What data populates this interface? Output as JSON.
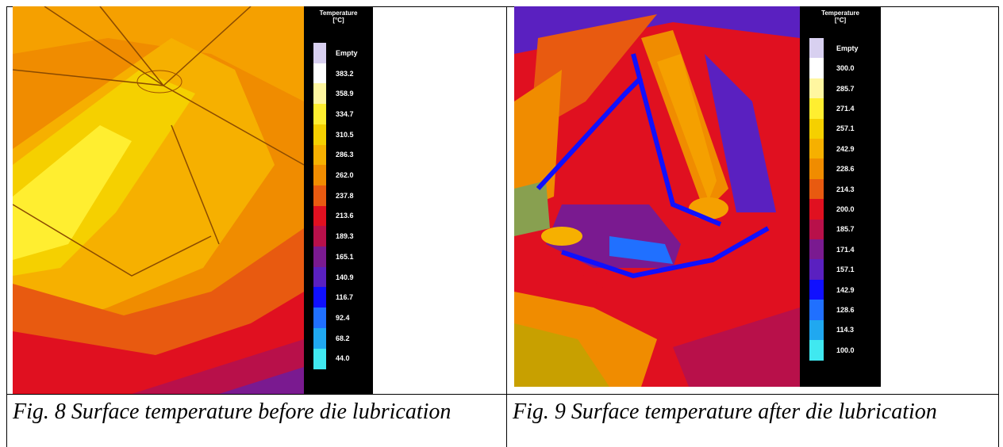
{
  "figures": [
    {
      "legend_title": "Temperature\n[°C]",
      "legend": [
        {
          "label": "Empty",
          "color": "#d8d0f0"
        },
        {
          "label": "383.2",
          "color": "#ffffff"
        },
        {
          "label": "358.9",
          "color": "#fff6a0"
        },
        {
          "label": "334.7",
          "color": "#ffee30"
        },
        {
          "label": "310.5",
          "color": "#f5d000"
        },
        {
          "label": "286.3",
          "color": "#f6b000"
        },
        {
          "label": "262.0",
          "color": "#f08c00"
        },
        {
          "label": "237.8",
          "color": "#e85a10"
        },
        {
          "label": "213.6",
          "color": "#e01020"
        },
        {
          "label": "189.3",
          "color": "#b8104a"
        },
        {
          "label": "165.1",
          "color": "#7a1a90"
        },
        {
          "label": "140.9",
          "color": "#5a20c0"
        },
        {
          "label": "116.7",
          "color": "#1010ff"
        },
        {
          "label": "92.4",
          "color": "#2070ff"
        },
        {
          "label": "68.2",
          "color": "#20a8f0"
        },
        {
          "label": "44.0",
          "color": "#40e8f0"
        }
      ],
      "caption": "Fig. 8 Surface temperature before die lubrication"
    },
    {
      "legend_title": "Temperature\n[°C]",
      "legend": [
        {
          "label": "Empty",
          "color": "#d8d0f0"
        },
        {
          "label": "300.0",
          "color": "#ffffff"
        },
        {
          "label": "285.7",
          "color": "#fff6a0"
        },
        {
          "label": "271.4",
          "color": "#ffee30"
        },
        {
          "label": "257.1",
          "color": "#f5d000"
        },
        {
          "label": "242.9",
          "color": "#f6b000"
        },
        {
          "label": "228.6",
          "color": "#f08c00"
        },
        {
          "label": "214.3",
          "color": "#e85a10"
        },
        {
          "label": "200.0",
          "color": "#e01020"
        },
        {
          "label": "185.7",
          "color": "#b8104a"
        },
        {
          "label": "171.4",
          "color": "#7a1a90"
        },
        {
          "label": "157.1",
          "color": "#5a20c0"
        },
        {
          "label": "142.9",
          "color": "#1010ff"
        },
        {
          "label": "128.6",
          "color": "#2070ff"
        },
        {
          "label": "114.3",
          "color": "#20a8f0"
        },
        {
          "label": "100.0",
          "color": "#40e8f0"
        }
      ],
      "caption": "Fig. 9 Surface temperature after die lubrication"
    }
  ]
}
